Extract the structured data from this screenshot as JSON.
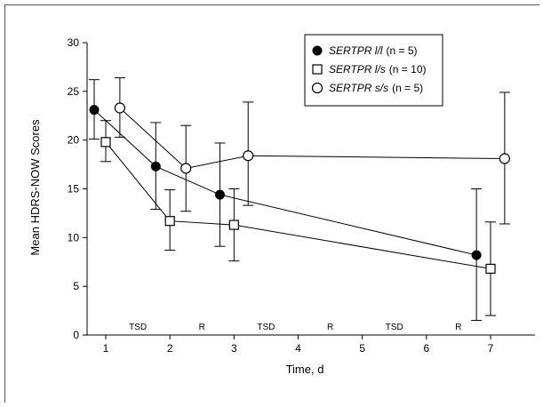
{
  "chart_data": {
    "type": "line",
    "title": "",
    "xlabel": "Time, d",
    "ylabel": "Mean HDRS-NOW Scores",
    "xlim": [
      0.65,
      7.5
    ],
    "ylim": [
      0,
      30
    ],
    "xticks": [
      1,
      2,
      3,
      4,
      5,
      6,
      7
    ],
    "yticks": [
      0,
      5,
      10,
      15,
      20,
      25,
      30
    ],
    "grid": false,
    "legend_position": "top-right",
    "annotations": [
      {
        "text": "TSD",
        "x": 1.5
      },
      {
        "text": "R",
        "x": 2.5
      },
      {
        "text": "TSD",
        "x": 3.5
      },
      {
        "text": "R",
        "x": 4.5
      },
      {
        "text": "TSD",
        "x": 5.5
      },
      {
        "text": "R",
        "x": 6.5
      }
    ],
    "series": [
      {
        "name": "SERTPR l/l",
        "n_label": "(n = 5)",
        "marker": "filled-circle",
        "x": [
          0.82,
          1.78,
          2.78,
          6.78
        ],
        "y": [
          23.1,
          17.3,
          14.4,
          8.2
        ],
        "err_low": [
          20.1,
          12.9,
          9.1,
          1.5
        ],
        "err_high": [
          26.2,
          21.8,
          19.7,
          15.0
        ]
      },
      {
        "name": "SERTPR l/s",
        "n_label": "(n = 10)",
        "marker": "open-square",
        "x": [
          1.0,
          2.0,
          3.0,
          7.0
        ],
        "y": [
          19.8,
          11.7,
          11.3,
          6.8
        ],
        "err_low": [
          17.8,
          8.7,
          7.6,
          2.0
        ],
        "err_high": [
          22.0,
          14.9,
          15.0,
          11.6
        ]
      },
      {
        "name": "SERTPR s/s",
        "n_label": "(n = 5)",
        "marker": "open-circle",
        "x": [
          1.22,
          2.25,
          3.22,
          7.22
        ],
        "y": [
          23.3,
          17.1,
          18.4,
          18.1
        ],
        "err_low": [
          20.3,
          12.7,
          13.3,
          11.4
        ],
        "err_high": [
          26.4,
          21.5,
          23.9,
          24.9
        ]
      }
    ]
  }
}
